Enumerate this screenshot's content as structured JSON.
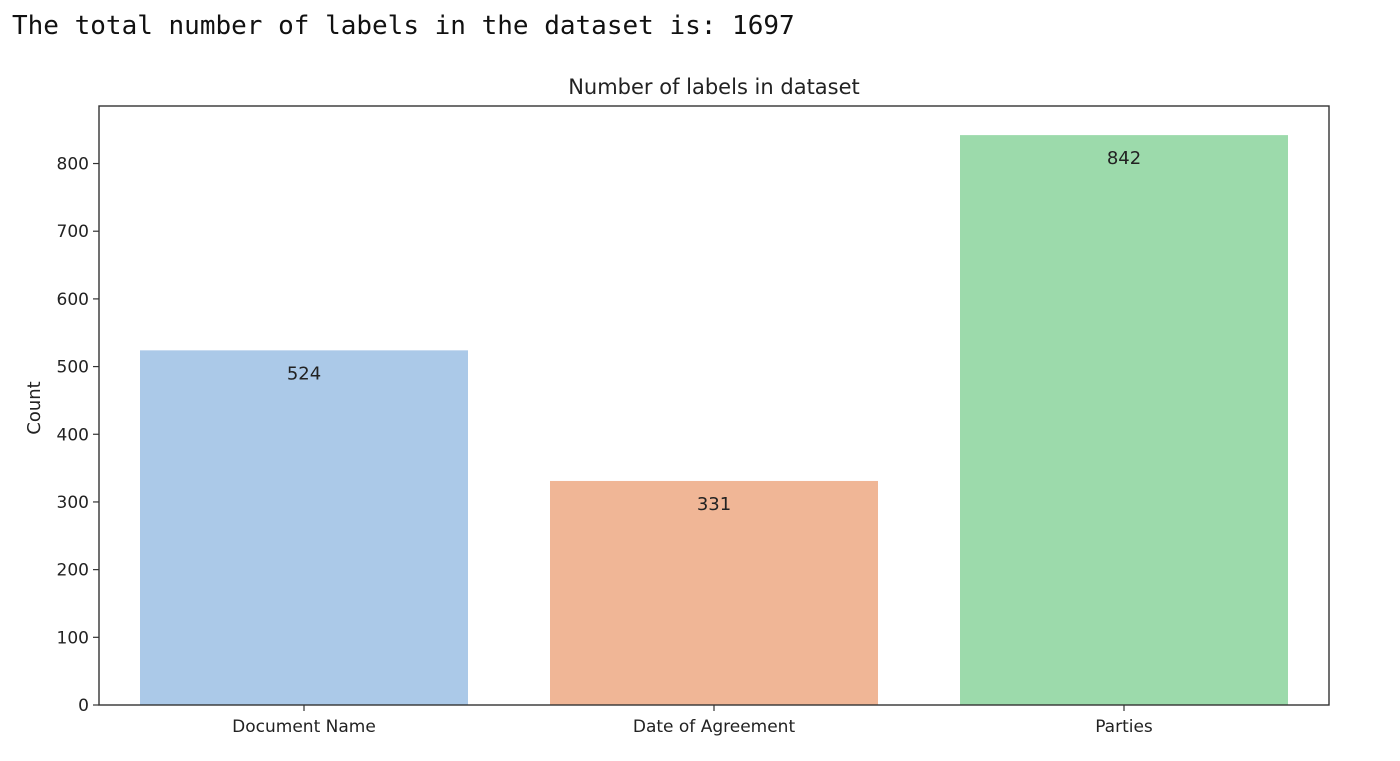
{
  "output": {
    "text": "The total number of labels in the dataset is: 1697"
  },
  "colors": {
    "bars": [
      "#abc9e8",
      "#f0b696",
      "#9cdaab"
    ],
    "axis": "#333333",
    "text": "#222222"
  },
  "chart_data": {
    "type": "bar",
    "title": "Number of labels in dataset",
    "xlabel": "",
    "ylabel": "Count",
    "categories": [
      "Document Name",
      "Date of Agreement",
      "Parties"
    ],
    "values": [
      524,
      331,
      842
    ],
    "bar_labels": [
      "524",
      "331",
      "842"
    ],
    "ylim": [
      0,
      885
    ],
    "yticks": [
      0,
      100,
      200,
      300,
      400,
      500,
      600,
      700,
      800
    ],
    "grid": false,
    "legend": "none"
  }
}
